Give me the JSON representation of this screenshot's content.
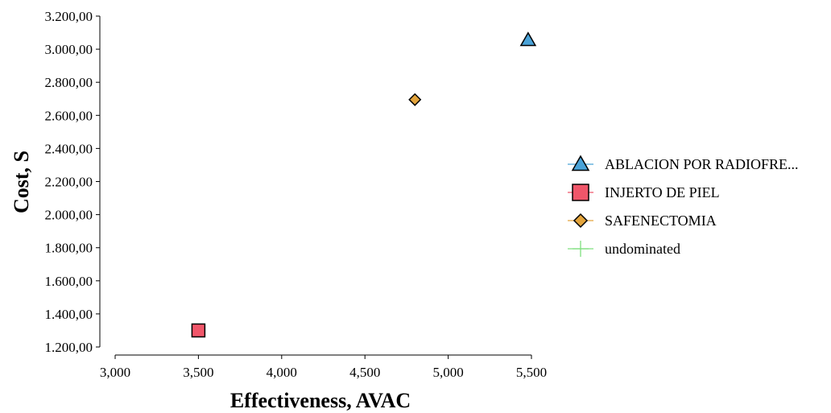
{
  "chart_data": {
    "type": "scatter",
    "title": "",
    "xlabel": "Effectiveness, AVAC",
    "ylabel": "Cost, S",
    "xlim": [
      3.0,
      5.5
    ],
    "ylim": [
      1200,
      3200
    ],
    "x_ticks": [
      3.0,
      3.5,
      4.0,
      4.5,
      5.0,
      5.5
    ],
    "x_tick_labels": [
      "3,000",
      "3,500",
      "4,000",
      "4,500",
      "5,000",
      "5,500"
    ],
    "y_ticks": [
      1200,
      1400,
      1600,
      1800,
      2000,
      2200,
      2400,
      2600,
      2800,
      3000,
      3200
    ],
    "y_tick_labels": [
      "1.200,00",
      "1.400,00",
      "1.600,00",
      "1.800,00",
      "2.000,00",
      "2.200,00",
      "2.400,00",
      "2.600,00",
      "2.800,00",
      "3.000,00",
      "3.200,00"
    ],
    "grid": false,
    "legend_position": "right",
    "series": [
      {
        "name": "ABLACION POR RADIOFRE...",
        "marker": "triangle",
        "color": "#4aa3d8",
        "x": [
          5.48
        ],
        "y": [
          3055
        ]
      },
      {
        "name": "INJERTO DE PIEL",
        "marker": "square",
        "color": "#f0566a",
        "x": [
          3.5
        ],
        "y": [
          1300
        ]
      },
      {
        "name": "SAFENECTOMIA",
        "marker": "diamond",
        "color": "#e3a43c",
        "x": [
          4.8
        ],
        "y": [
          2695
        ]
      },
      {
        "name": "undominated",
        "marker": "line",
        "color": "#7fe07f",
        "x": [],
        "y": []
      }
    ]
  }
}
